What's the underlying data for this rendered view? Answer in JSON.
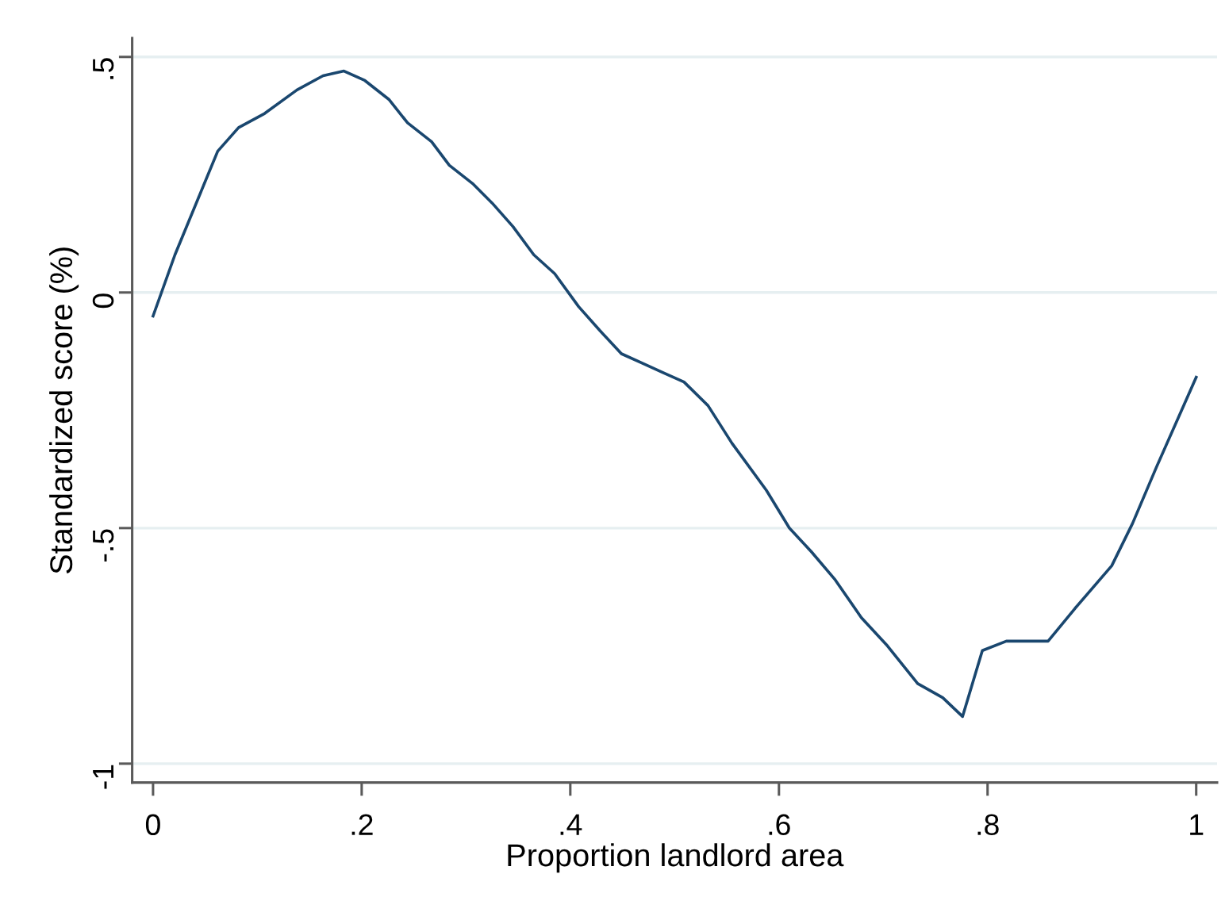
{
  "chart_data": {
    "type": "line",
    "xlabel": "Proportion landlord area",
    "ylabel": "Standardized score (%)",
    "x": [
      0.0,
      0.021,
      0.062,
      0.082,
      0.107,
      0.138,
      0.163,
      0.183,
      0.203,
      0.226,
      0.244,
      0.267,
      0.284,
      0.307,
      0.325,
      0.345,
      0.365,
      0.385,
      0.408,
      0.428,
      0.449,
      0.469,
      0.489,
      0.509,
      0.532,
      0.555,
      0.588,
      0.61,
      0.631,
      0.654,
      0.679,
      0.704,
      0.733,
      0.757,
      0.776,
      0.795,
      0.818,
      0.836,
      0.858,
      0.884,
      0.919,
      0.939,
      0.962,
      1.0
    ],
    "series": [
      {
        "color": "#1a476f",
        "values": [
          -0.05,
          0.08,
          0.3,
          0.35,
          0.38,
          0.43,
          0.46,
          0.47,
          0.45,
          0.41,
          0.36,
          0.32,
          0.27,
          0.23,
          0.19,
          0.14,
          0.08,
          0.04,
          -0.03,
          -0.08,
          -0.13,
          -0.15,
          -0.17,
          -0.19,
          -0.24,
          -0.32,
          -0.42,
          -0.5,
          -0.55,
          -0.61,
          -0.69,
          -0.75,
          -0.83,
          -0.86,
          -0.9,
          -0.76,
          -0.74,
          -0.74,
          -0.74,
          -0.67,
          -0.58,
          -0.49,
          -0.37,
          -0.18
        ]
      }
    ],
    "xlim": [
      -0.02,
      1.02
    ],
    "ylim": [
      -1.04,
      0.54
    ],
    "xticks": [
      0,
      {
        "value": 0.2,
        "label": ".2"
      },
      {
        "value": 0.4,
        "label": ".4"
      },
      {
        "value": 0.6,
        "label": ".6"
      },
      {
        "value": 0.8,
        "label": ".8"
      },
      1
    ],
    "yticks": [
      -1,
      {
        "value": -0.5,
        "label": "-.5"
      },
      0,
      {
        "value": 0.5,
        "label": ".5"
      }
    ],
    "grid": "y",
    "line_style": "solid"
  }
}
